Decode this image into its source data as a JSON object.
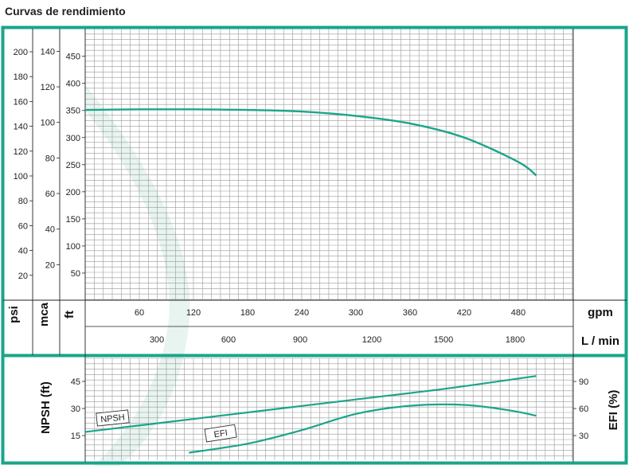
{
  "page": {
    "title": "Curvas de rendimiento"
  },
  "colors": {
    "frame": "#1aa58a",
    "curve": "#1aa58a",
    "grid": "#9a9a9a",
    "watermark": "#dff0ea"
  },
  "chart_data": [
    {
      "type": "line",
      "title": "",
      "y_axes": [
        {
          "unit": "psi",
          "ticks": [
            20,
            40,
            60,
            80,
            100,
            120,
            140,
            160,
            180,
            200
          ]
        },
        {
          "unit": "mca",
          "ticks": [
            20,
            40,
            60,
            80,
            100,
            120,
            140
          ]
        },
        {
          "unit": "ft",
          "ticks": [
            50,
            100,
            150,
            200,
            250,
            300,
            350,
            400,
            450
          ]
        }
      ],
      "x_axes": [
        {
          "unit": "gpm",
          "ticks": [
            60,
            120,
            180,
            240,
            300,
            360,
            420,
            480
          ]
        },
        {
          "unit": "L / min",
          "ticks": [
            300,
            600,
            900,
            1200,
            1500,
            1800
          ]
        }
      ],
      "xlim_gpm": [
        0,
        545
      ],
      "ylim_ft": [
        0,
        480
      ],
      "grid": true,
      "series": [
        {
          "units": "gpm / ft",
          "x": [
            0,
            60,
            120,
            180,
            240,
            300,
            360,
            420,
            480,
            500
          ],
          "y": [
            351,
            352,
            352,
            351,
            348,
            340,
            326,
            300,
            255,
            230
          ]
        }
      ]
    },
    {
      "type": "line",
      "title": "",
      "ylabel_left": "NPSH (ft)",
      "ylabel_right": "EFI (%)",
      "y_ticks_left": [
        15,
        30,
        45
      ],
      "y_ticks_right": [
        30,
        60,
        90
      ],
      "grid": true,
      "series": [
        {
          "name": "NPSH",
          "units": "gpm / ft",
          "x": [
            0,
            100,
            200,
            300,
            400,
            500
          ],
          "y": [
            17,
            23,
            29,
            35,
            41,
            48
          ]
        },
        {
          "name": "EFI",
          "units": "gpm / %",
          "x": [
            115,
            180,
            240,
            300,
            360,
            420,
            470,
            500
          ],
          "y": [
            11,
            21,
            36,
            54,
            63,
            64,
            58,
            52
          ]
        }
      ]
    }
  ]
}
